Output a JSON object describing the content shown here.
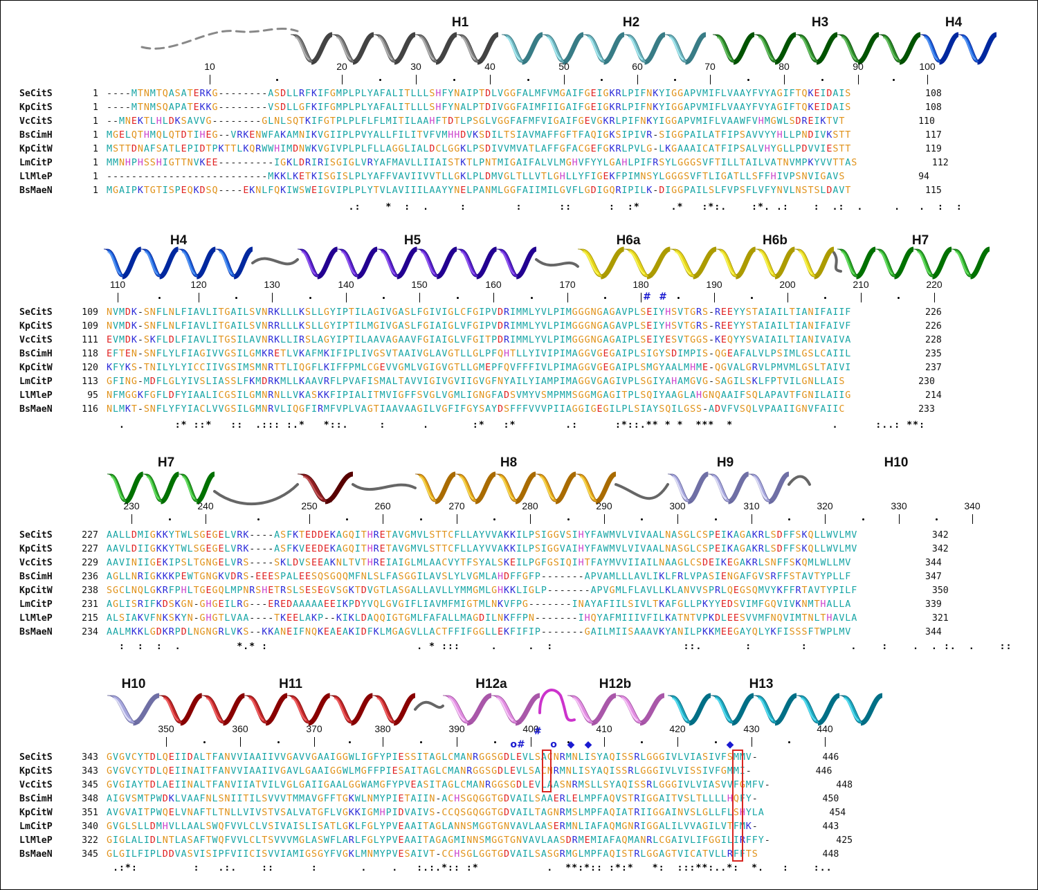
{
  "sections": [
    {
      "helices": [
        {
          "label": "H1",
          "color": "#7a7a7a"
        },
        {
          "label": "H2",
          "color": "#6fb3bd"
        },
        {
          "label": "H3",
          "color": "#2e8a2a"
        },
        {
          "label": "H4",
          "color": "#1b5fd6"
        }
      ],
      "ruler": [
        "10",
        "20",
        "30",
        "40",
        "50",
        "60",
        "70",
        "80",
        "90",
        "100"
      ],
      "rows": [
        {
          "name": "SeCitS",
          "start": "1",
          "seq": "----MTNMTQASATERKG--------ASDLLRFKIFGMPLPLYAFALITLLLSHFYNAIPTDLVGGFALMFVMGAIFGEIGKRLPIFNKYIGGAPVMIFLVAAYFVYAGIFTQKEIDAIS",
          "end": "108"
        },
        {
          "name": "KpCitS",
          "start": "1",
          "seq": "----MTNMSQAPATEKKG--------VSDLLGFKIFGMPLPLYAFALITLLLSHFYNALPTDIVGGFAIMFIIGAIFGEIGKRLPIFNKYIGGAPVMIFLVAAYFVYAGIFTQKEIDAIS",
          "end": "108"
        },
        {
          "name": "VcCitS",
          "start": "1",
          "seq": "--MNEKTLHLDKSAVVG--------GLNLSQTKIFGTPLPLFLFLMITILAAHFTDTLPSGLVGGFAFMFVIGAIFGEVGKRLPIFNKYIGGAPVMIFLVAAWFVHMGWLSDREIKTVT",
          "end": "110"
        },
        {
          "name": "BsCimH",
          "start": "1",
          "seq": "MGELQTHMQLQTDTIHEG--VRKENWFAKAMNIKVGIIPLPVYALLFILITVFVMHHDVKSDILTSIAVMAFFGFTFAQIGKSIPIVR-SIGGPAILATFIPSAVVYYHLLPNDIVKSTT",
          "end": "117"
        },
        {
          "name": "KpCitW",
          "start": "1",
          "seq": "MSTTDNAFSATLEPIDTPKTTLKQRWWHIMDNWKVGIVPLPLFLLAGGLIALDCLGGKLPSDIVVMVATLAFFGFACGEFGKRLPVLG-LKGAAAICATFIPSALVHYGLLPDVVIESTT",
          "end": "119"
        },
        {
          "name": "LmCitP",
          "start": "1",
          "seq": "MMNHPHSSHIGTTNVKEE---------IGKLDRIRISGIGLVRYAFMAVLLIIAISTKTLPNTMIGAIFALVLMGHVFYYLGAHLPIFRSYLGGGSVFTILLTAILVATNVMPKYVVTTAS",
          "end": "112"
        },
        {
          "name": "LlMleP",
          "start": "1",
          "seq": "--------------------------MKKLKETKISGISLPLYAFFVAVIIVVTLLGKLPLDMVGLTLLVTLGHLLYFIGEKFPIMNSYLGGGSVFTLIGATLLSFFHIVPSNVIGAVS",
          "end": "94"
        },
        {
          "name": "BsMaeN",
          "start": "1",
          "seq": "MGAIPKTGTISPEQKDSQ----EKNLFQKIWSWEIGVIPLPLYTVLAVIIILAAYYNELPANMLGGFAIIMILGVFLGDIGQRIPILK-DIGGPAILSLFVPSFLVFYNVLNSTSLDAVT",
          "end": "115"
        }
      ],
      "conservation": "                                       .:    *  :  .     :        :      ::      :  :*     .*   :*:.    :*. .:    :  .:  .     .   .  :  :"
    },
    {
      "helices": [
        {
          "label": "H4",
          "color": "#1b5fd6"
        },
        {
          "label": "H5",
          "color": "#5a1fc8"
        },
        {
          "label": "H6a",
          "color": "#e3d21c"
        },
        {
          "label": "H6b",
          "color": "#e3d21c"
        },
        {
          "label": "H7",
          "color": "#2ea82a"
        }
      ],
      "ruler": [
        "110",
        "120",
        "130",
        "140",
        "150",
        "160",
        "170",
        "180",
        "190",
        "200",
        "210",
        "220"
      ],
      "rows": [
        {
          "name": "SeCitS",
          "start": "109",
          "seq": "NVMDK-SNFLNLFIAVLITGAILSVNRKLLLKSLLGYIPTILAGIVGASLFGIVIGLCFGIPVDRIMMLYVLPIMGGGNGAGAVPLSEIYHSVTGRS-REEYYSTAIAILTIANIFAIIF",
          "end": "226"
        },
        {
          "name": "KpCitS",
          "start": "109",
          "seq": "NVMDK-SNFLNLFIAVLITGAILSVNRRLLLKSLLGYIPTILMGIVGASLFGIAIGLVFGIPVDRIMMLYVLPIMGGGNGAGAVPLSEIYHSVTGRS-REEYYSTAIAILTIANIFAIVF",
          "end": "226"
        },
        {
          "name": "VcCitS",
          "start": "111",
          "seq": "EVMDK-SKFLDLFIAVLITGSILAVNRKLLIRSLAGYIPTILAAVAGAAVFGIAIGLVFGITPDRIMMLYVLPIMGGGNGAGAIPLSEIYESVTGGS-KEQYYSVAIAILTIANIVAIVA",
          "end": "228"
        },
        {
          "name": "BsCimH",
          "start": "118",
          "seq": "EFTEN-SNFLYLFIAGIVVGSILGMKRETLVKAFMKIFIPLIVGSVTAAIVGLAVGTLLGLPFQHTLLYIVIPIMAGGVGEGAIPLSIGYSDIMPIS-QGEAFALVLPSIMLGSLCAIIL",
          "end": "235"
        },
        {
          "name": "KpCitW",
          "start": "120",
          "seq": "KFYKS-TNILYLYICCIIVGSIMSMNRTTLIQGFLKIFFPMLCGEVVGMLVGIGVGTLLGMEPFQVFFFIVLPIMAGGVGEGAIPLSMGYAALMHME-QGVALGRVLPMVMLGSLTAIVI",
          "end": "237"
        },
        {
          "name": "LmCitP",
          "start": "113",
          "seq": "GFING-MDFLGLYIVSLIASSLFKMDRKMLLKAAVRFLPVAFISMALTAVVIGIVGVIIGVGFNYAILYIAMPIMAGGVGAGIVPLSGIYAHAMGVG-SAGILSKLFPTVILGNLLAIS",
          "end": "230"
        },
        {
          "name": "LlMleP",
          "start": "95",
          "seq": "NFMGGKFGFLDFYIAALICGSILGMNRNLLVKASKKFIPIALITMVIGFFSVGLVGMLIGNGFADSVMYVSMPMMSGGMGAGITPLSQIYAAGLAHGNQAAIFSQLAPAVTFGNILAIIG",
          "end": "214"
        },
        {
          "name": "BsMaeN",
          "start": "116",
          "seq": "NLMKT-SNFLYFYIACLVVGSILGMNRVLIQGFIRMFVPLVAGTIAAVAAGILVGFIFGYSAYDSFFFVVVPIIAGGIGEGILPLSIAYSQILGSS-ADVFVSQLVPAAIIGNVFAIIC",
          "end": "233"
        }
      ],
      "conservation": "  .        :* ::*   ::  .::: :.*   *::.     :      .       :*   :*        .:      :*::.** * *  ***  *                .      :..: **:"
    },
    {
      "helices": [
        {
          "label": "H7",
          "color": "#2ea82a"
        },
        {
          "label": "H8",
          "color": "#8e1f22"
        },
        {
          "label": "H9",
          "color": "#e0a21a"
        },
        {
          "label": "H10",
          "color": "#a6a6dc"
        }
      ],
      "ruler": [
        "230",
        "240",
        "250",
        "260",
        "270",
        "280",
        "290",
        "300",
        "310",
        "320",
        "330",
        "340"
      ],
      "rows": [
        {
          "name": "SeCitS",
          "start": "227",
          "seq": "AALLDMIGKKYTWLSGEGELVRK----ASFKTEDDEKAGQITHRETAVGMVLSTTCFLLAYVVAKKILPSIGGVSIHYFAWMVLVIVAALNASGLCSPEIKAGAKRLSDFFSKQLLWVLMV",
          "end": "342"
        },
        {
          "name": "KpCitS",
          "start": "227",
          "seq": "AAVLDIIGKKYTWLSGEGELVRK----ASFKVEEDEKAGQITHRETAVGMVLSTTCFLLAYVVAKKILPSIGGVAIHYFAWMVLVIVAALNASGLCSPEIKAGAKRLSDFFSKQLLWVLMV",
          "end": "342"
        },
        {
          "name": "VcCitS",
          "start": "229",
          "seq": "AAVINIIGEKIPSLTGNGELVRS----SKLDVSEEAKNLTVTHREIAIGLMLAACVYTFSYALSKEILPGFGSIQIHTFAYMVVIIAILNAAGLCSDEIKEGAKRLSNFFSKQMLWLLMV",
          "end": "344"
        },
        {
          "name": "BsCimH",
          "start": "236",
          "seq": "AGLLNRIGKKKPEWTGNGKVDRS-EEESPALEESQSGQQMFNLSLFASGGILAVSLYLVGMLAHDFFGFP-------APVAMLLLAVLIKLFRLVPASIENGAFGVSRFFSTAVTYPLLF",
          "end": "347"
        },
        {
          "name": "KpCitW",
          "start": "238",
          "seq": "SGCLNQLGKRFPHLTGEGQLMPNRSHETRSLSESEGVSGKTDVGTLASGALLAVLLYMMGMLGHKKLIGLP-------APVGMLFLAVLLKLANVVSPRLQEGSQMVYKFFRTAVTYPILF",
          "end": "350"
        },
        {
          "name": "LmCitP",
          "start": "231",
          "seq": "AGLISRIFKDSKGN-GHGEILRG---EREDAAAAAEEIKPDYVQLGVGIFLIAVMFMIGTMLNKVFPG-------INAYAFIILSIVLTKAFGLLPKYYEDSVIMFGQVIVKNMTHALLA",
          "end": "339"
        },
        {
          "name": "LlMleP",
          "start": "215",
          "seq": "ALSIAKVFNKSKYN-GHGTLVAA----TKEELAKP--KIKLDAQQIGTGMLFAFALLMAGDILNKFFPN-------IHQYAFMIIIVFILKATNTVPKDLEESVVMFNQVIMTNLTHAVLA",
          "end": "321"
        },
        {
          "name": "BsMaeN",
          "start": "234",
          "seq": "AALMKKLGDKRPDLNGNGRLVKS--KKANEIFNQKEAEAKIDFKLMGAGVLLACTFFIFGGLLEKFIFIP-------GAILMIISAAAVKYANILPKKMEEGAYQLYKFISSSFTWPLMV",
          "end": "344"
        }
      ],
      "conservation": "  :  :  :  .         *.* :                        . * :::     .     .  :                     ::.       :        :       .    :    .  . :.  .    ::"
    },
    {
      "helices": [
        {
          "label": "H10",
          "color": "#a6a6dc"
        },
        {
          "label": "H11",
          "color": "#c0282a"
        },
        {
          "label": "H12a",
          "color": "#e08ee0"
        },
        {
          "label": "H12b",
          "color": "#e08ee0"
        },
        {
          "label": "H13",
          "color": "#1ea6bd"
        }
      ],
      "ruler": [
        "350",
        "360",
        "370",
        "380",
        "390",
        "400",
        "410",
        "420",
        "430",
        "440"
      ],
      "marks": [
        "o#",
        "o",
        "◆",
        "◆",
        "◆",
        "#"
      ],
      "rows": [
        {
          "name": "SeCitS",
          "start": "343",
          "seq": "GVGVCYTDLQEIIDALTFANVVIAAIIVVGAVVGAAIGGWLIGFYPIESSITAGLCMANRGGSGDLEVLSACNRMNLISYAQISSRLGGGIVLVIASIVFSMMV-",
          "end": "446"
        },
        {
          "name": "KpCitS",
          "start": "343",
          "seq": "GVGVCYTDLQEIINAITFANVVIAAIIVGAVLGAAIGGWLMGFFPIESAITAGLCMANRGGSGDLEVLSACNRMNLISYAQISSRLGGGIVLVISSIVFGMMI-",
          "end": "446"
        },
        {
          "name": "VcCitS",
          "start": "345",
          "seq": "GVGIAYTDLAEIINALTFANVIIATVILVGLGAIIGAALGGWAMGFYPVEASITAGLCMANRGGSGDLEVLAASNRMSLLSYAQISSRLGGGIVLVIASVVFGMFV-",
          "end": "448"
        },
        {
          "name": "BsCimH",
          "start": "348",
          "seq": "AIGVSMTPWDKLVAAFNLSNIITILSVVVTMMAVGFFTGKWLNMYPIETAIIN-ACHSGQGGTGDVAILSAAERLELMPFAQVSTRIGGAITVSLTLLLLHQFY-",
          "end": "450"
        },
        {
          "name": "KpCitW",
          "start": "351",
          "seq": "AVGVAITPWQELVNAFTLTNLLVIVSTVSALVATGFLVGKKIGMHPIDVAIVS-CCQSGQGGTGDVAILTAGNRMSLMPFAQIATRIIGGAINVSLGLLFLSHYLA",
          "end": "454"
        },
        {
          "name": "LmCitP",
          "start": "340",
          "seq": "GVGLSLLDMHVLLAALSWQFVVLCLVSIVAISLISATLGKLFGLYPVEAAITAGLANNSMGGTGNVAVLAASERMNLIAFAQMGNRIGGALILVVAGILVTFMK-",
          "end": "443"
        },
        {
          "name": "LlMleP",
          "start": "322",
          "seq": "GIGLALIDLNTLASAFTWQFVVLCLTSVVVMGLASWFLARLFGLYPVEAAITAGAGMINNSMGGTGNVAVLAASDRMEMIAFAQMANRLCGAIVLIFGGILIRFFY-",
          "end": "425"
        },
        {
          "name": "BsMaeN",
          "start": "345",
          "seq": "GLGILFIPLDDVASVISIPFVIICISVVIAMIGSGYFVGKLMNMYPVESAIVT-CCHSGLGGTGDVAILSASGRMGLMPFAQISTRLGGAGTVICATVLLRFFTS",
          "end": "448"
        }
      ],
      "conservation": " .:*:         :   .:.    ::      :       .    .   :.:.*:: :*           .  **:*:: :*:*   *:  :::**:..*:  *.   :    :.."
    },
    {}
  ]
}
